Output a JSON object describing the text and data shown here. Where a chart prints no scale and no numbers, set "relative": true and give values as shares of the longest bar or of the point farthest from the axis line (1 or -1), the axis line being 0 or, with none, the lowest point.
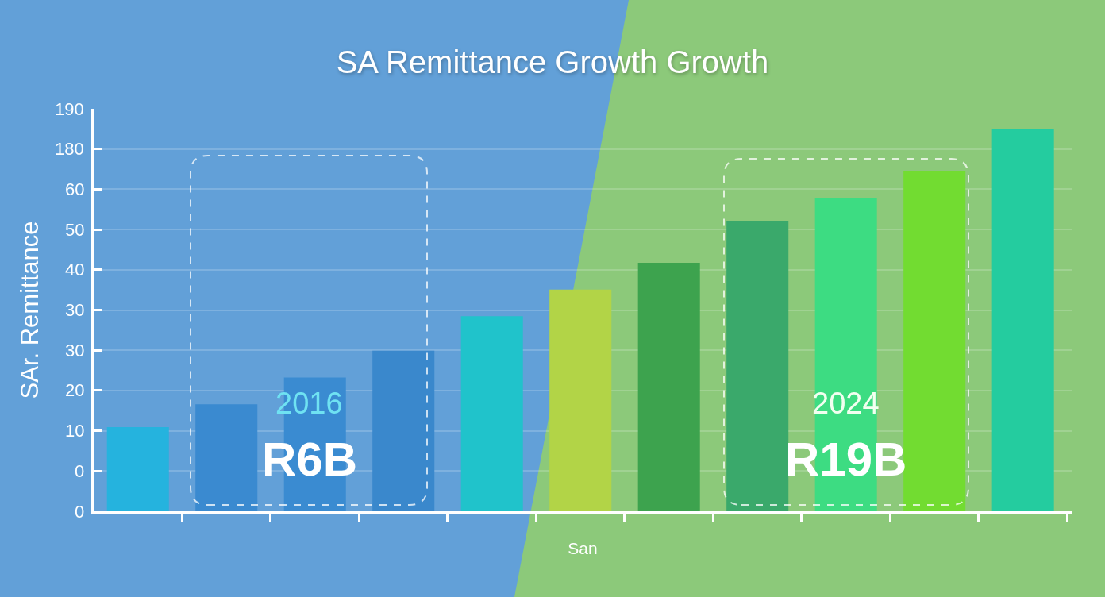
{
  "chart_data": {
    "type": "bar",
    "title": "SA Remittance Growth Growth",
    "xlabel": "San",
    "ylabel": "SAr. Remittance",
    "relative": true,
    "categories": [
      null,
      null,
      null,
      null,
      null,
      null,
      null,
      null,
      null,
      null,
      null
    ],
    "values": [
      0.22,
      0.28,
      0.35,
      0.42,
      0.51,
      0.58,
      0.65,
      0.76,
      0.82,
      0.89,
      1
    ],
    "colors": [
      "#25b3de",
      "#3a8ad0",
      "#3a8bd1",
      "#3a88cc",
      "#20c3cb",
      "#b2d447",
      "#3da34e",
      "#3aa96b",
      "#3ddc82",
      "#72dc31",
      "#24cc9f"
    ],
    "grid": "y",
    "annotations": [
      "190",
      "180",
      "60",
      "50",
      "40",
      "30",
      "30",
      "20",
      "10",
      "0",
      "0",
      "2016",
      "R6B",
      "2024",
      "R19B"
    ]
  }
}
